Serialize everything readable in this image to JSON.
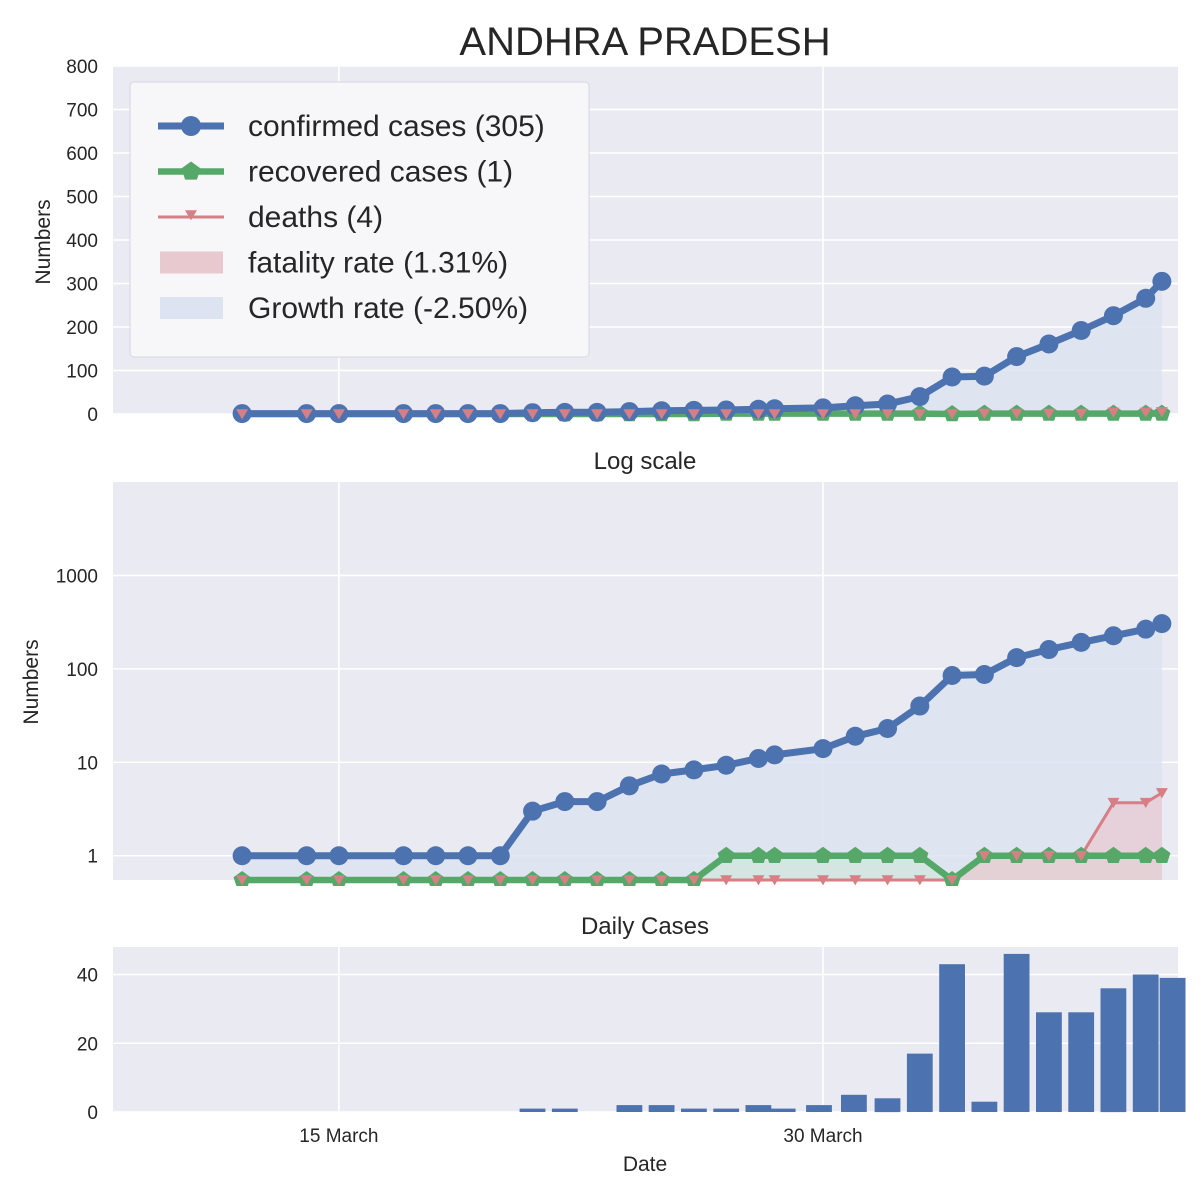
{
  "chart_data": {
    "type": "line",
    "title": "ANDHRA PRADESH",
    "dates": [
      "2020-03-12",
      "2020-03-14",
      "2020-03-15",
      "2020-03-17",
      "2020-03-18",
      "2020-03-19",
      "2020-03-20",
      "2020-03-21",
      "2020-03-22",
      "2020-03-23",
      "2020-03-24",
      "2020-03-25",
      "2020-03-26",
      "2020-03-27",
      "2020-03-28",
      "2020-03-28T12:00",
      "2020-03-30",
      "2020-03-31",
      "2020-04-01",
      "2020-04-02",
      "2020-04-03",
      "2020-04-04",
      "2020-04-05",
      "2020-04-06",
      "2020-04-07",
      "2020-04-08",
      "2020-04-09",
      "2020-04-09T12:00"
    ],
    "x_ticks": [
      {
        "date": "2020-03-15",
        "label": "15 March"
      },
      {
        "date": "2020-03-30",
        "label": "30 March"
      }
    ],
    "xlim": [
      "2020-03-08",
      "2020-04-10"
    ],
    "xlabel": "Date",
    "legend": {
      "placement": "top-left",
      "entries": [
        {
          "label": "confirmed cases (305)",
          "color": "#4c72b0",
          "marker": "circle"
        },
        {
          "label": "recovered cases (1)",
          "color": "#55a868",
          "marker": "pentagon"
        },
        {
          "label": "deaths (4)",
          "color": "#d67f85",
          "marker": "triangle-down"
        },
        {
          "label": "fatality rate (1.31%)",
          "color": "#e8c9d0",
          "marker": "patch"
        },
        {
          "label": "Growth rate (-2.50%)",
          "color": "#dde3f1",
          "marker": "patch"
        }
      ]
    },
    "panels": [
      {
        "name": "linear",
        "subtitle": "",
        "ylabel": "Numbers",
        "yscale": "linear",
        "ylim": [
          0,
          800
        ],
        "y_ticks": [
          0,
          100,
          200,
          300,
          400,
          500,
          600,
          700,
          800
        ],
        "grid": true,
        "series": [
          {
            "name": "confirmed cases (305)",
            "values": [
              1,
              1,
              1,
              1,
              1,
              1,
              1,
              3,
              3.8,
              3.8,
              5.6,
              7.5,
              8.3,
              9.3,
              11,
              12,
              14,
              19,
              23,
              40,
              85,
              87,
              132,
              161,
              192,
              226,
              266,
              305
            ]
          },
          {
            "name": "recovered cases (1)",
            "values": [
              0,
              0,
              0,
              0,
              0,
              0,
              0,
              0,
              0,
              0,
              0,
              0,
              0,
              1,
              1,
              1,
              1,
              1,
              1,
              1,
              0,
              1,
              1,
              1,
              1,
              1,
              1,
              1
            ]
          },
          {
            "name": "deaths (4)",
            "values": [
              0,
              0,
              0,
              0,
              0,
              0,
              0,
              0,
              0,
              0,
              0,
              0,
              0,
              0,
              0,
              0,
              0,
              0,
              0,
              0,
              0,
              1,
              1,
              1,
              1,
              3.7,
              3.7,
              4.7
            ]
          }
        ]
      },
      {
        "name": "log",
        "subtitle": "Log scale",
        "ylabel": "Numbers",
        "yscale": "log",
        "ylim": [
          0.55,
          10000
        ],
        "y_ticks": [
          1,
          10,
          100,
          1000
        ],
        "grid": true
      },
      {
        "name": "daily",
        "subtitle": "Daily Cases",
        "ylabel": "",
        "type": "bar",
        "ylim": [
          0,
          48
        ],
        "y_ticks": [
          0,
          20,
          40
        ],
        "grid": true,
        "bars": [
          {
            "date": "2020-03-21",
            "value": 1
          },
          {
            "date": "2020-03-22",
            "value": 1
          },
          {
            "date": "2020-03-24",
            "value": 2
          },
          {
            "date": "2020-03-25",
            "value": 2
          },
          {
            "date": "2020-03-26",
            "value": 1
          },
          {
            "date": "2020-03-27",
            "value": 1
          },
          {
            "date": "2020-03-28",
            "value": 2
          },
          {
            "date": "2020-03-28T18:00",
            "value": 1
          },
          {
            "date": "2020-03-29T21:00",
            "value": 2
          },
          {
            "date": "2020-03-30T23:00",
            "value": 5
          },
          {
            "date": "2020-04-01",
            "value": 4
          },
          {
            "date": "2020-04-02",
            "value": 17
          },
          {
            "date": "2020-04-03",
            "value": 43
          },
          {
            "date": "2020-04-04",
            "value": 3
          },
          {
            "date": "2020-04-05",
            "value": 46
          },
          {
            "date": "2020-04-06",
            "value": 29
          },
          {
            "date": "2020-04-07",
            "value": 29
          },
          {
            "date": "2020-04-08",
            "value": 36
          },
          {
            "date": "2020-04-09",
            "value": 40
          },
          {
            "date": "2020-04-09T20:00",
            "value": 39
          }
        ]
      }
    ],
    "colors": {
      "confirmed": "#4c72b0",
      "recovered": "#55a868",
      "deaths": "#d67f85",
      "plot_background": "#eaeaf2",
      "grid": "#ffffff",
      "growth_fill": "#dde3f1",
      "fatality_fill": "#e8c9d0",
      "recovered_fill": "#cfe5dc"
    }
  }
}
